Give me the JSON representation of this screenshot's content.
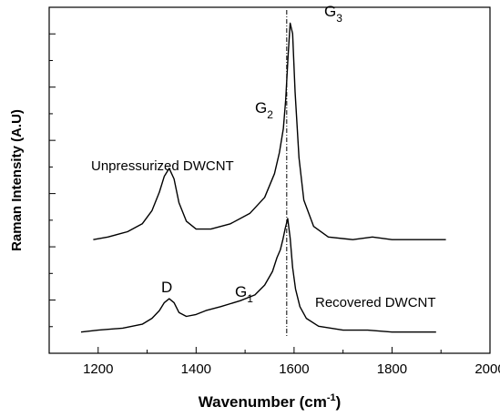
{
  "chart_data": {
    "type": "line",
    "title": "",
    "xlabel": "Wavenumber (cm",
    "xlabel_sup": "-1",
    "xlabel_close": ")",
    "ylabel": "Raman Intensity (A.U)",
    "xlim": [
      1100,
      2000
    ],
    "xticks": [
      1200,
      1400,
      1600,
      1800,
      2000
    ],
    "y_tick_labels": "none",
    "grid": false,
    "legend": "none",
    "reference_line_x": 1585,
    "series": [
      {
        "name": "Unpressurized DWCNT",
        "x": [
          1190,
          1220,
          1260,
          1290,
          1310,
          1325,
          1335,
          1345,
          1355,
          1365,
          1380,
          1400,
          1430,
          1470,
          1510,
          1540,
          1560,
          1570,
          1578,
          1583,
          1588,
          1592,
          1597,
          1602,
          1610,
          1620,
          1640,
          1670,
          1720,
          1760,
          1800,
          1850,
          1910
        ],
        "y": [
          0.02,
          0.03,
          0.05,
          0.08,
          0.13,
          0.2,
          0.26,
          0.29,
          0.25,
          0.16,
          0.09,
          0.06,
          0.06,
          0.08,
          0.12,
          0.18,
          0.27,
          0.35,
          0.44,
          0.55,
          0.72,
          0.84,
          0.8,
          0.58,
          0.33,
          0.17,
          0.07,
          0.03,
          0.02,
          0.03,
          0.02,
          0.02,
          0.02
        ]
      },
      {
        "name": "Recovered DWCNT",
        "x": [
          1165,
          1200,
          1250,
          1290,
          1310,
          1325,
          1335,
          1345,
          1355,
          1365,
          1380,
          1400,
          1420,
          1450,
          1490,
          1520,
          1540,
          1556,
          1565,
          1572,
          1577,
          1582,
          1587,
          1592,
          1597,
          1603,
          1612,
          1625,
          1650,
          1700,
          1750,
          1800,
          1850,
          1890
        ],
        "y": [
          0.02,
          0.03,
          0.04,
          0.06,
          0.09,
          0.13,
          0.17,
          0.19,
          0.17,
          0.12,
          0.1,
          0.11,
          0.13,
          0.15,
          0.18,
          0.21,
          0.26,
          0.33,
          0.4,
          0.44,
          0.49,
          0.55,
          0.6,
          0.5,
          0.35,
          0.24,
          0.15,
          0.09,
          0.05,
          0.03,
          0.03,
          0.02,
          0.02,
          0.02
        ]
      }
    ],
    "annotations": {
      "label_unpressurized": "Unpressurized DWCNT",
      "label_recovered": "Recovered DWCNT",
      "peak_D": "D",
      "peak_G1_base": "G",
      "peak_G1_sub": "1",
      "peak_G2_base": "G",
      "peak_G2_sub": "2",
      "peak_G3_base": "G",
      "peak_G3_sub": "3"
    }
  }
}
